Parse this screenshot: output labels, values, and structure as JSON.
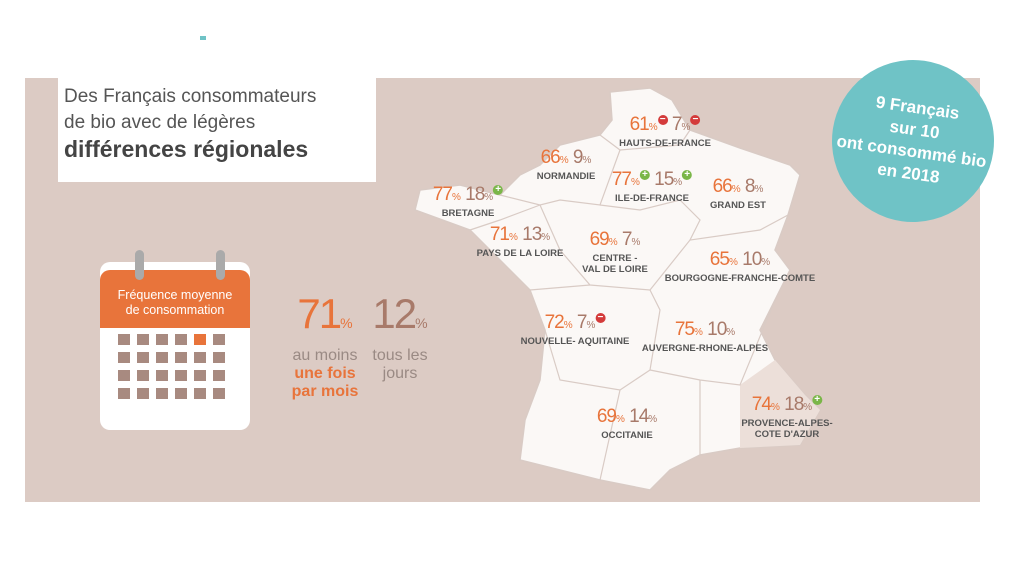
{
  "header": {
    "title_lines": [
      "Des Français consommateurs",
      "de bio avec de légères",
      "différences régionales"
    ]
  },
  "badge": {
    "lines": [
      "9 Français",
      "sur 10",
      "ont consommé bio",
      "en 2018"
    ]
  },
  "calendar": {
    "label_lines": [
      "Fréquence moyenne",
      "de consommation"
    ]
  },
  "unit": "%",
  "stats": [
    {
      "value": "71",
      "lines": [
        "au moins",
        "une fois",
        "par mois"
      ]
    },
    {
      "value": "12",
      "lines": [
        "tous les",
        "jours"
      ]
    }
  ],
  "regions": [
    {
      "name": [
        "HAUTS-DE-FRANCE"
      ],
      "monthly": "61",
      "daily": "7",
      "monthly_trend": "down",
      "daily_trend": "down"
    },
    {
      "name": [
        "NORMANDIE"
      ],
      "monthly": "66",
      "daily": "9"
    },
    {
      "name": [
        "ILE-DE-FRANCE"
      ],
      "monthly": "77",
      "daily": "15",
      "monthly_trend": "up",
      "daily_trend": "up"
    },
    {
      "name": [
        "BRETAGNE"
      ],
      "monthly": "77",
      "daily": "18",
      "daily_trend": "up"
    },
    {
      "name": [
        "PAYS DE LA LOIRE"
      ],
      "monthly": "71",
      "daily": "13"
    },
    {
      "name": [
        "CENTRE -",
        "VAL DE LOIRE"
      ],
      "monthly": "69",
      "daily": "7"
    },
    {
      "name": [
        "GRAND EST"
      ],
      "monthly": "66",
      "daily": "8"
    },
    {
      "name": [
        "BOURGOGNE-FRANCHE-COMTE"
      ],
      "monthly": "65",
      "daily": "10"
    },
    {
      "name": [
        "NOUVELLE- AQUITAINE"
      ],
      "monthly": "72",
      "daily": "7",
      "daily_trend": "down"
    },
    {
      "name": [
        "AUVERGNE-RHONE-ALPES"
      ],
      "monthly": "75",
      "daily": "10"
    },
    {
      "name": [
        "OCCITANIE"
      ],
      "monthly": "69",
      "daily": "14"
    },
    {
      "name": [
        "PROVENCE-ALPES-",
        "COTE D'AZUR"
      ],
      "monthly": "74",
      "daily": "18",
      "daily_trend": "up"
    }
  ]
}
